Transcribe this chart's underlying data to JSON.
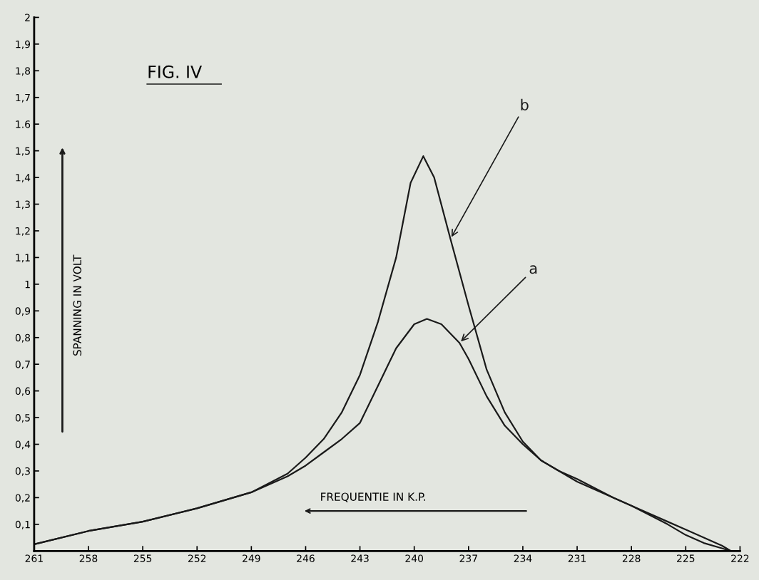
{
  "chart_data": {
    "type": "line",
    "title": "FIG. IV",
    "xlabel": "FREQUENTIE IN K.P.",
    "ylabel": "SPANNING IN VOLT",
    "series": [
      {
        "name": "a",
        "color": "#1a1a1a",
        "x": [
          261,
          258,
          255,
          252,
          249,
          247,
          246,
          245,
          244,
          243,
          242,
          241,
          240,
          239.3,
          238.5,
          237.5,
          237,
          236,
          235,
          234,
          233,
          232,
          231,
          229,
          228,
          226,
          225,
          224,
          223,
          222.5
        ],
        "values": [
          0.025,
          0.075,
          0.11,
          0.16,
          0.22,
          0.28,
          0.32,
          0.37,
          0.42,
          0.48,
          0.62,
          0.76,
          0.85,
          0.87,
          0.85,
          0.78,
          0.72,
          0.58,
          0.47,
          0.4,
          0.34,
          0.3,
          0.27,
          0.2,
          0.17,
          0.11,
          0.08,
          0.05,
          0.02,
          0
        ]
      },
      {
        "name": "b",
        "color": "#1a1a1a",
        "x": [
          261,
          258,
          255,
          252,
          249,
          247,
          246,
          245,
          244,
          243,
          242,
          241,
          240.2,
          239.5,
          238.9,
          238,
          237,
          236,
          235,
          234,
          233,
          232,
          231,
          229,
          228,
          226,
          225,
          224,
          223,
          222.5
        ],
        "values": [
          0.025,
          0.075,
          0.11,
          0.16,
          0.22,
          0.29,
          0.35,
          0.42,
          0.52,
          0.66,
          0.86,
          1.1,
          1.38,
          1.48,
          1.4,
          1.17,
          0.92,
          0.68,
          0.52,
          0.41,
          0.34,
          0.3,
          0.26,
          0.2,
          0.17,
          0.1,
          0.06,
          0.03,
          0.01,
          0
        ]
      }
    ],
    "xlim": [
      261,
      222
    ],
    "ylim": [
      0,
      2
    ],
    "xticks": [
      261,
      258,
      255,
      252,
      249,
      246,
      243,
      240,
      237,
      234,
      231,
      228,
      225,
      222
    ],
    "yticks": [
      {
        "value": 0.1,
        "label": "0,1"
      },
      {
        "value": 0.2,
        "label": "0,2"
      },
      {
        "value": 0.3,
        "label": "0,3"
      },
      {
        "value": 0.4,
        "label": "0,4"
      },
      {
        "value": 0.5,
        "label": "0,5"
      },
      {
        "value": 0.6,
        "label": "0,6"
      },
      {
        "value": 0.7,
        "label": "0,7"
      },
      {
        "value": 0.8,
        "label": "0,8"
      },
      {
        "value": 0.9,
        "label": "0,9"
      },
      1,
      {
        "value": 1.1,
        "label": "1,1"
      },
      {
        "value": 1.2,
        "label": "1,2"
      },
      {
        "value": 1.3,
        "label": "1,3"
      },
      {
        "value": 1.4,
        "label": "1,4"
      },
      {
        "value": 1.5,
        "label": "1,5"
      },
      {
        "value": 1.6,
        "label": "1.6"
      },
      {
        "value": 1.7,
        "label": "1,7"
      },
      {
        "value": 1.8,
        "label": "1,8"
      },
      {
        "value": 1.9,
        "label": "1,9"
      },
      2
    ],
    "grid": false,
    "legend": false,
    "marker": "none",
    "line_style": "solid"
  }
}
